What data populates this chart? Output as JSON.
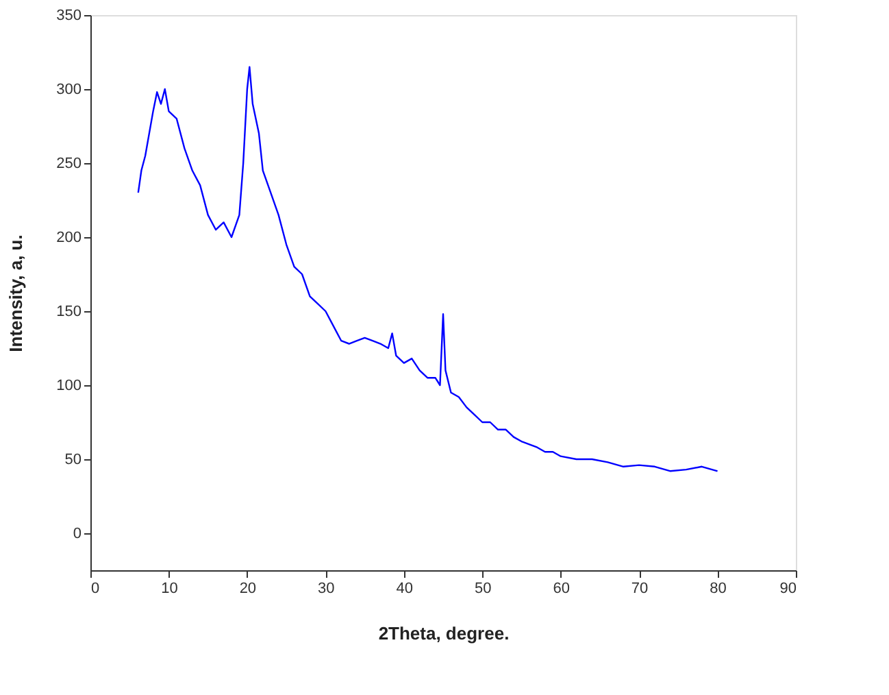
{
  "chart_data": {
    "type": "line",
    "xlabel": "2Theta, degree.",
    "ylabel": "Intensity, a, u.",
    "xlim": [
      0,
      90
    ],
    "xticks": [
      0,
      10,
      20,
      30,
      40,
      50,
      60,
      70,
      80,
      90
    ],
    "ylim": [
      -25,
      350
    ],
    "yticks": [
      0,
      50,
      100,
      150,
      200,
      250,
      300,
      350
    ],
    "grid": false,
    "legend": false,
    "marker": "none",
    "line_style": "solid",
    "series": [
      {
        "color": "#0000ff",
        "x": [
          6.1,
          6.5,
          7,
          8,
          8.5,
          9,
          9.5,
          10,
          11,
          12,
          13,
          14,
          15,
          16,
          17,
          18,
          19,
          19.5,
          20,
          20.3,
          20.7,
          21.5,
          22,
          23,
          24,
          25,
          26,
          27,
          28,
          29,
          30,
          31,
          32,
          33,
          34,
          35,
          36,
          37,
          38,
          38.5,
          39,
          40,
          41,
          42,
          43,
          44,
          44.6,
          45,
          45.3,
          46,
          47,
          48,
          49,
          50,
          51,
          52,
          53,
          54,
          55,
          56,
          57,
          58,
          59,
          60,
          62,
          64,
          66,
          68,
          70,
          72,
          74,
          76,
          78,
          80
        ],
        "values": [
          230,
          245,
          255,
          285,
          298,
          290,
          300,
          285,
          280,
          260,
          245,
          235,
          215,
          205,
          210,
          200,
          215,
          250,
          300,
          315,
          290,
          270,
          245,
          230,
          215,
          195,
          180,
          175,
          160,
          155,
          150,
          140,
          130,
          128,
          130,
          132,
          130,
          128,
          125,
          135,
          120,
          115,
          118,
          110,
          105,
          105,
          100,
          148,
          110,
          95,
          92,
          85,
          80,
          75,
          75,
          70,
          70,
          65,
          62,
          60,
          58,
          55,
          55,
          52,
          50,
          50,
          48,
          45,
          46,
          45,
          42,
          43,
          45,
          42
        ]
      }
    ]
  }
}
